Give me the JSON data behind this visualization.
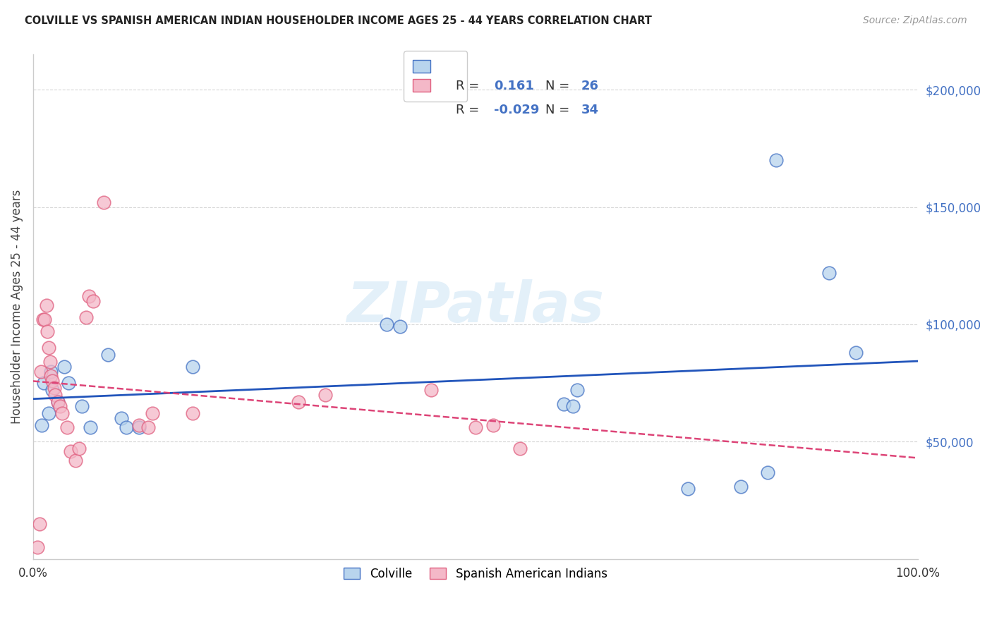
{
  "title": "COLVILLE VS SPANISH AMERICAN INDIAN HOUSEHOLDER INCOME AGES 25 - 44 YEARS CORRELATION CHART",
  "source": "Source: ZipAtlas.com",
  "ylabel": "Householder Income Ages 25 - 44 years",
  "ytick_values": [
    50000,
    100000,
    150000,
    200000
  ],
  "ytick_labels": [
    "$50,000",
    "$100,000",
    "$150,000",
    "$200,000"
  ],
  "ylim": [
    0,
    215000
  ],
  "xlim": [
    0.0,
    1.0
  ],
  "colville_R": "0.161",
  "colville_N": "26",
  "spanish_R": "-0.029",
  "spanish_N": "34",
  "colville_fill": "#b8d4ed",
  "colville_edge": "#4472c4",
  "colville_line": "#2255bb",
  "spanish_fill": "#f4b8c8",
  "spanish_edge": "#e06080",
  "spanish_line": "#dd4477",
  "watermark": "ZIPatlas",
  "grid_color": "#cccccc",
  "ytick_color": "#4472c4",
  "colville_x": [
    0.01,
    0.012,
    0.018,
    0.02,
    0.022,
    0.028,
    0.035,
    0.04,
    0.055,
    0.065,
    0.085,
    0.1,
    0.105,
    0.12,
    0.18,
    0.4,
    0.415,
    0.6,
    0.61,
    0.615,
    0.74,
    0.8,
    0.83,
    0.84,
    0.9,
    0.93
  ],
  "colville_y": [
    57000,
    75000,
    62000,
    80000,
    72000,
    67000,
    82000,
    75000,
    65000,
    56000,
    87000,
    60000,
    56000,
    56000,
    82000,
    100000,
    99000,
    66000,
    65000,
    72000,
    30000,
    31000,
    37000,
    170000,
    122000,
    88000
  ],
  "spanish_x": [
    0.005,
    0.007,
    0.009,
    0.011,
    0.013,
    0.015,
    0.016,
    0.018,
    0.019,
    0.02,
    0.022,
    0.024,
    0.025,
    0.028,
    0.03,
    0.033,
    0.038,
    0.042,
    0.048,
    0.052,
    0.06,
    0.063,
    0.068,
    0.08,
    0.12,
    0.13,
    0.135,
    0.18,
    0.3,
    0.33,
    0.45,
    0.5,
    0.52,
    0.55
  ],
  "spanish_y": [
    5000,
    15000,
    80000,
    102000,
    102000,
    108000,
    97000,
    90000,
    84000,
    78000,
    76000,
    73000,
    70000,
    67000,
    65000,
    62000,
    56000,
    46000,
    42000,
    47000,
    103000,
    112000,
    110000,
    152000,
    57000,
    56000,
    62000,
    62000,
    67000,
    70000,
    72000,
    56000,
    57000,
    47000
  ]
}
